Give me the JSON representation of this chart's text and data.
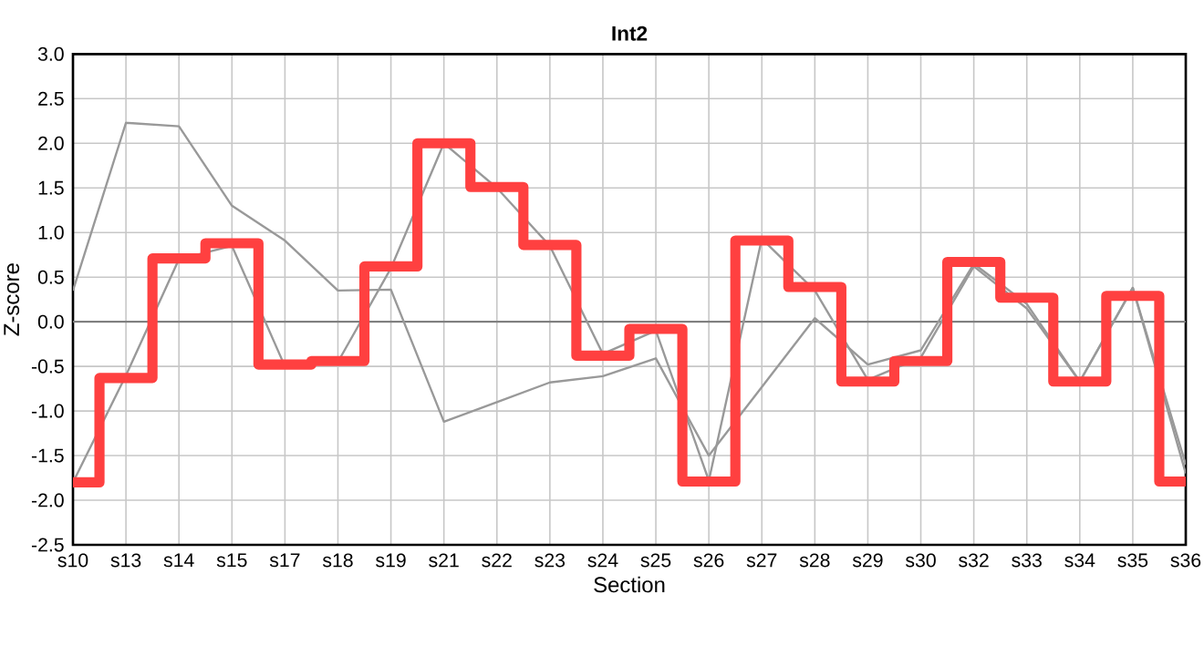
{
  "chart_data": {
    "type": "line",
    "title": "Int2",
    "xlabel": "Section",
    "ylabel": "Z-score",
    "categories": [
      "s10",
      "s13",
      "s14",
      "s15",
      "s17",
      "s18",
      "s19",
      "s21",
      "s22",
      "s23",
      "s24",
      "s25",
      "s26",
      "s27",
      "s28",
      "s29",
      "s30",
      "s32",
      "s33",
      "s34",
      "s35",
      "s36"
    ],
    "series": [
      {
        "color": "#999999",
        "values": [
          0.35,
          2.23,
          2.19,
          1.3,
          0.91,
          0.35,
          0.36,
          -1.12,
          -0.9,
          -0.68,
          -0.61,
          -0.41,
          -1.5,
          -0.73,
          0.04,
          -0.48,
          -0.32,
          0.65,
          0.2,
          -0.67,
          0.38,
          -1.6
        ]
      },
      {
        "color": "#999999",
        "values": [
          -1.8,
          -0.6,
          0.7,
          0.85,
          -0.5,
          -0.45,
          0.6,
          2.0,
          1.5,
          0.85,
          -0.36,
          -0.1,
          -1.78,
          0.93,
          0.35,
          -0.65,
          -0.4,
          0.62,
          0.15,
          -0.67,
          0.38,
          -1.7
        ]
      },
      {
        "type": "step",
        "color": "#ff4040",
        "values": [
          -1.8,
          -0.63,
          0.71,
          0.88,
          -0.48,
          -0.44,
          0.62,
          2.0,
          1.51,
          0.86,
          -0.38,
          -0.08,
          -1.79,
          0.91,
          0.39,
          -0.67,
          -0.44,
          0.67,
          0.27,
          -0.67,
          0.29,
          -1.79
        ]
      }
    ],
    "ylim": [
      -2.5,
      3.0
    ],
    "yticks": [
      {
        "value": -2.5,
        "label": "-2.5"
      },
      {
        "value": -2.0,
        "label": "-2.0"
      },
      {
        "value": -1.5,
        "label": "-1.5"
      },
      {
        "value": -1.0,
        "label": "-1.0"
      },
      {
        "value": -0.5,
        "label": "-0.5"
      },
      {
        "value": 0,
        "label": "0.0"
      },
      {
        "value": 0.5,
        "label": "0.5"
      },
      {
        "value": 1.0,
        "label": "1.0"
      },
      {
        "value": 1.5,
        "label": "1.5"
      },
      {
        "value": 2.0,
        "label": "2.0"
      },
      {
        "value": 2.5,
        "label": "2.5"
      },
      {
        "value": 3.0,
        "label": "3.0"
      }
    ],
    "ref_lines": [
      {
        "axis": "y",
        "value": 0,
        "color": "#808080"
      }
    ],
    "grid": true,
    "marker": "none"
  }
}
